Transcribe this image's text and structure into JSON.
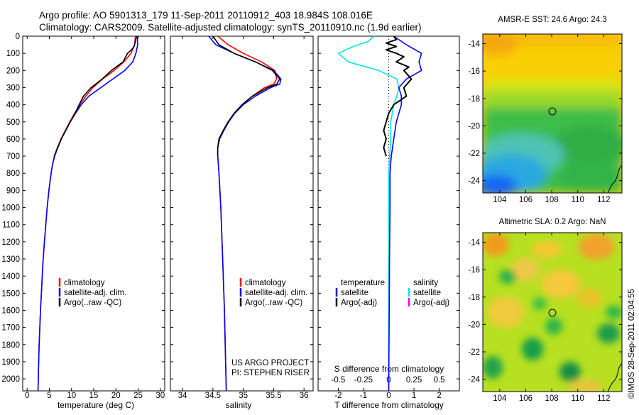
{
  "header": {
    "line1": "Argo profile: AO 5901313_179 11-Sep-2011 20110912_403 18.984S 108.016E",
    "line2": "Climatology: CARS2009. Satellite-adjusted climatology: synTS_20110910.nc (1.9d earlier)"
  },
  "stamp": "©IMOS 28-Sep-2011 02:04:55",
  "colors": {
    "climatology": "#ff0000",
    "satellite": "#0000ff",
    "argo": "#000000",
    "satellite_light": "#00e5e5",
    "argo_adj_salinity": "#ff00ff"
  },
  "chart_data": [
    {
      "type": "line",
      "name": "temperature-profile",
      "xlabel": "temperature (deg C)",
      "ylabel": "",
      "xlim": [
        -1,
        31
      ],
      "ylim": [
        2070,
        0
      ],
      "xticks": [
        "0",
        "5",
        "10",
        "15",
        "20",
        "25",
        "30"
      ],
      "yticks": [
        "0",
        "100",
        "200",
        "300",
        "400",
        "500",
        "600",
        "700",
        "800",
        "900",
        "1000",
        "1100",
        "1200",
        "1300",
        "1400",
        "1500",
        "1600",
        "1700",
        "1800",
        "1900",
        "2000"
      ],
      "legend": [
        "climatology",
        "satellite-adj. clim.",
        "Argo(..raw -QC)"
      ],
      "series": [
        {
          "name": "climatology",
          "pressure": [
            0,
            50,
            100,
            150,
            200,
            250,
            300,
            350,
            400,
            450,
            500,
            550,
            600,
            650,
            700,
            750,
            800,
            900,
            1000,
            1100,
            1200,
            1300,
            1400,
            1500,
            1600,
            1700,
            1800,
            1900,
            2000,
            2070
          ],
          "values": [
            24.4,
            24.2,
            23.4,
            21.8,
            19.6,
            17.0,
            14.8,
            13.2,
            11.9,
            10.7,
            9.6,
            8.6,
            7.6,
            6.8,
            6.1,
            5.7,
            5.4,
            4.9,
            4.5,
            4.2,
            3.9,
            3.6,
            3.4,
            3.2,
            3.0,
            2.85,
            2.7,
            2.6,
            2.5,
            2.45
          ]
        },
        {
          "name": "satellite-adj. clim.",
          "pressure": [
            0,
            50,
            100,
            150,
            200,
            250,
            300,
            350,
            400,
            450,
            500,
            550,
            600,
            650,
            700,
            750,
            800,
            900,
            1000,
            1100,
            1200,
            1300,
            1400,
            1500,
            1600,
            1700,
            1800,
            1900,
            2000,
            2070
          ],
          "values": [
            24.8,
            24.9,
            24.5,
            23.8,
            22.0,
            19.3,
            16.6,
            13.9,
            12.2,
            10.9,
            9.7,
            8.7,
            7.7,
            6.9,
            6.2,
            5.7,
            5.4,
            4.9,
            4.5,
            4.2,
            3.9,
            3.6,
            3.4,
            3.2,
            3.0,
            2.85,
            2.7,
            2.6,
            2.5,
            2.45
          ]
        },
        {
          "name": "Argo",
          "pressure": [
            0,
            30,
            60,
            80,
            100,
            150,
            200,
            250,
            300,
            350,
            400,
            450,
            500,
            550,
            600,
            650,
            700
          ],
          "values": [
            24.6,
            24.4,
            24.1,
            23.5,
            22.6,
            21.6,
            19.0,
            16.9,
            14.4,
            12.7,
            11.7,
            10.8,
            9.7,
            8.7,
            7.7,
            6.9,
            6.1
          ]
        }
      ]
    },
    {
      "type": "line",
      "name": "salinity-profile",
      "xlabel": "salinity",
      "ylabel": "",
      "xlim": [
        33.8,
        36.15
      ],
      "ylim": [
        2070,
        0
      ],
      "xticks": [
        "34",
        "34.5",
        "35",
        "35.5",
        "36"
      ],
      "legend": [
        "climatology",
        "satellite-adj. clim.",
        "Argo(..raw -QC)"
      ],
      "annotations": [
        "US ARGO PROJECT",
        "PI: STEPHEN RISER"
      ],
      "series": [
        {
          "name": "climatology",
          "pressure": [
            0,
            50,
            100,
            150,
            200,
            250,
            280,
            300,
            350,
            400,
            450,
            500,
            550,
            600,
            650,
            700,
            800,
            1000,
            1300,
            1600,
            2070
          ],
          "values": [
            34.58,
            34.75,
            35.0,
            35.3,
            35.52,
            35.55,
            35.5,
            35.35,
            35.15,
            34.98,
            34.85,
            34.75,
            34.67,
            34.6,
            34.58,
            34.58,
            34.6,
            34.63,
            34.66,
            34.69,
            34.72
          ]
        },
        {
          "name": "satellite-adj. clim.",
          "pressure": [
            0,
            50,
            100,
            150,
            200,
            250,
            280,
            300,
            350,
            400,
            450,
            500,
            550,
            600,
            650,
            700,
            800,
            1000,
            1300,
            1600,
            2070
          ],
          "values": [
            34.43,
            34.55,
            34.85,
            35.2,
            35.5,
            35.62,
            35.6,
            35.45,
            35.2,
            35.0,
            34.86,
            34.76,
            34.68,
            34.61,
            34.58,
            34.58,
            34.6,
            34.63,
            34.66,
            34.69,
            34.72
          ]
        },
        {
          "name": "Argo",
          "pressure": [
            0,
            50,
            100,
            150,
            200,
            250,
            280,
            300,
            350,
            400,
            450,
            500,
            550,
            600,
            650,
            700
          ],
          "values": [
            34.5,
            34.6,
            34.85,
            35.2,
            35.48,
            35.6,
            35.55,
            35.4,
            35.15,
            34.98,
            34.85,
            34.75,
            34.67,
            34.6,
            34.58,
            34.58
          ]
        }
      ]
    },
    {
      "type": "line",
      "name": "difference-profile",
      "xlabel": "T difference from climatology",
      "xlabel_top": "S difference from climatology",
      "xlim": [
        -2.8,
        2.8
      ],
      "s_xlim": [
        -0.7,
        0.7
      ],
      "ylim": [
        2070,
        0
      ],
      "xticks": [
        "-2",
        "-1",
        "0",
        "1",
        "2"
      ],
      "s_xticks": [
        "-0.5",
        "-0.25",
        "0",
        "0.25",
        "0.5"
      ],
      "legend_left": {
        "heading": "temperature",
        "items": [
          "satellite",
          "Argo(-adj)"
        ]
      },
      "legend_right": {
        "heading": "salinity",
        "items": [
          "satellite",
          "Argo(-adj)"
        ]
      },
      "series": [
        {
          "name": "T satellite",
          "pressure": [
            0,
            50,
            100,
            150,
            200,
            250,
            300,
            350,
            400,
            500,
            600,
            700,
            800,
            1000,
            1300,
            1600,
            2070
          ],
          "values": [
            0.2,
            0.7,
            1.3,
            1.2,
            1.3,
            0.7,
            0.4,
            0.5,
            0.5,
            0.3,
            0.2,
            0.1,
            0.05,
            0.05,
            0.03,
            0.02,
            0.0
          ]
        },
        {
          "name": "T Argo",
          "pressure": [
            0,
            20,
            40,
            60,
            80,
            100,
            120,
            150,
            180,
            200,
            250,
            300,
            350,
            400,
            450,
            500,
            550,
            600,
            650,
            700
          ],
          "values": [
            0.2,
            0.3,
            -0.1,
            0.3,
            -0.1,
            0.3,
            0.6,
            0.3,
            0.8,
            0.6,
            0.9,
            0.6,
            0.7,
            0.2,
            0.0,
            -0.1,
            -0.2,
            -0.1,
            -0.2,
            -0.1
          ]
        },
        {
          "name": "S satellite",
          "pressure": [
            0,
            30,
            60,
            100,
            150,
            200,
            250,
            300,
            350,
            400,
            500,
            600,
            800,
            1000,
            1300,
            1600,
            2070
          ],
          "values": [
            -0.15,
            -0.2,
            -0.35,
            -0.5,
            -0.4,
            -0.1,
            0.08,
            0.1,
            0.08,
            0.05,
            0.02,
            0.02,
            0.0,
            0.0,
            0.0,
            0.0,
            0.0
          ]
        },
        {
          "name": "S Argo",
          "pressure": [
            0,
            100,
            2070
          ],
          "values": [
            0.0,
            0.0,
            0.0
          ]
        }
      ]
    },
    {
      "type": "heatmap",
      "name": "amsr-sst-map",
      "title": "AMSR-E SST: 24.6 Argo: 24.3",
      "xticks": [
        "104",
        "106",
        "108",
        "110",
        "112"
      ],
      "yticks": [
        "-14",
        "-16",
        "-18",
        "-20",
        "-22",
        "-24"
      ],
      "xlim": [
        102.7,
        113.4
      ],
      "ylim": [
        -24.9,
        -13.3
      ],
      "marker": {
        "lon": 108.0,
        "lat": -19.0
      }
    },
    {
      "type": "heatmap",
      "name": "altimetric-sla-map",
      "title": "Altimetric SLA: 0.2 Argo: NaN",
      "xticks": [
        "104",
        "106",
        "108",
        "110",
        "112"
      ],
      "yticks": [
        "-14",
        "-16",
        "-18",
        "-20",
        "-22",
        "-24"
      ],
      "xlim": [
        102.7,
        113.4
      ],
      "ylim": [
        -24.9,
        -13.3
      ],
      "marker": {
        "lon": 108.0,
        "lat": -19.0
      }
    }
  ]
}
